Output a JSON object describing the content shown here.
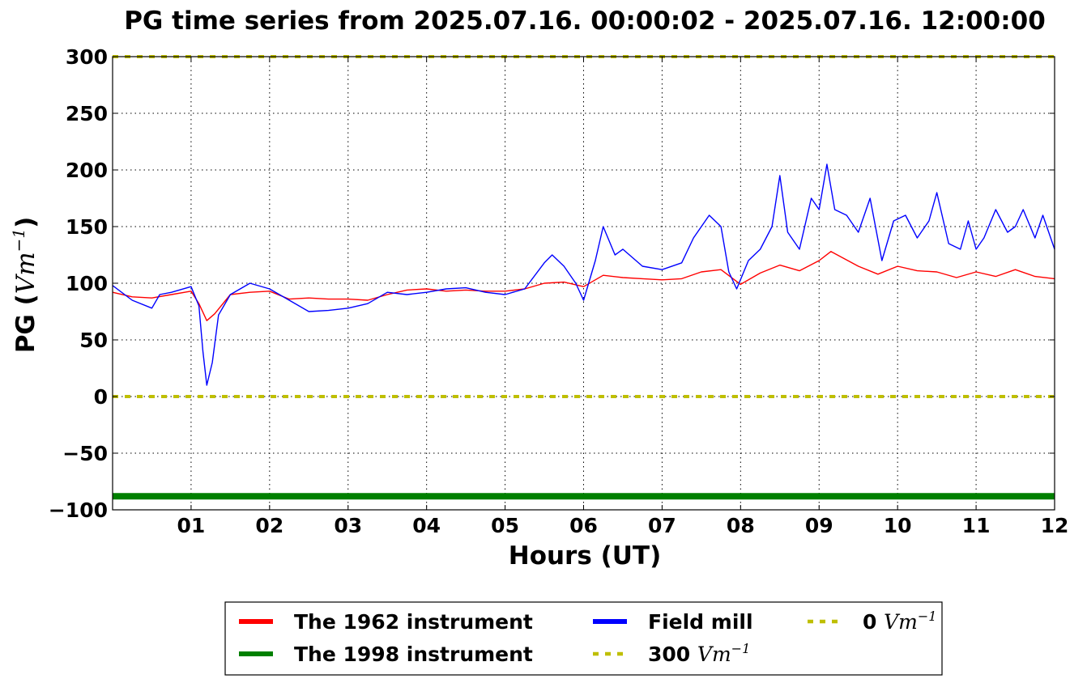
{
  "chart_data": {
    "type": "line",
    "title": "PG time series from 2025.07.16. 00:00:02 - 2025.07.16. 12:00:00",
    "xlabel": "Hours (UT)",
    "ylabel": "PG (",
    "ylabel_unit": "Vm",
    "ylabel_exp": "−1",
    "ylabel_close": ")",
    "xlim": [
      0,
      12
    ],
    "ylim": [
      -100,
      300
    ],
    "grid": true,
    "grid_style": "dotted",
    "legend_position": "bottom-center, below axes",
    "x_ticks": [
      {
        "value": 1,
        "label": "01"
      },
      {
        "value": 2,
        "label": "02"
      },
      {
        "value": 3,
        "label": "03"
      },
      {
        "value": 4,
        "label": "04"
      },
      {
        "value": 5,
        "label": "05"
      },
      {
        "value": 6,
        "label": "06"
      },
      {
        "value": 7,
        "label": "07"
      },
      {
        "value": 8,
        "label": "08"
      },
      {
        "value": 9,
        "label": "09"
      },
      {
        "value": 10,
        "label": "10"
      },
      {
        "value": 11,
        "label": "11"
      },
      {
        "value": 12,
        "label": "12"
      }
    ],
    "y_ticks": [
      {
        "value": 300,
        "label": "300"
      },
      {
        "value": 250,
        "label": "250"
      },
      {
        "value": 200,
        "label": "200"
      },
      {
        "value": 150,
        "label": "150"
      },
      {
        "value": 100,
        "label": "100"
      },
      {
        "value": 50,
        "label": "50"
      },
      {
        "value": 0,
        "label": "0"
      },
      {
        "value": -50,
        "label": "−50"
      },
      {
        "value": -100,
        "label": "−100"
      }
    ],
    "series": [
      {
        "name": "The 1962 instrument",
        "color": "#ff0000",
        "style": "solid",
        "x": [
          0,
          0.25,
          0.5,
          0.75,
          1.0,
          1.1,
          1.2,
          1.3,
          1.5,
          1.75,
          2.0,
          2.25,
          2.5,
          2.75,
          3.0,
          3.25,
          3.5,
          3.75,
          4.0,
          4.25,
          4.5,
          4.75,
          5.0,
          5.25,
          5.5,
          5.75,
          6.0,
          6.25,
          6.5,
          6.75,
          7.0,
          7.25,
          7.5,
          7.75,
          8.0,
          8.25,
          8.5,
          8.75,
          9.0,
          9.15,
          9.5,
          9.75,
          10.0,
          10.25,
          10.5,
          10.75,
          11.0,
          11.25,
          11.5,
          11.75,
          12.0
        ],
        "y": [
          92,
          88,
          87,
          90,
          93,
          82,
          67,
          73,
          90,
          92,
          93,
          86,
          87,
          86,
          86,
          85,
          90,
          94,
          95,
          93,
          94,
          93,
          93,
          95,
          100,
          101,
          97,
          107,
          105,
          104,
          103,
          104,
          110,
          112,
          99,
          109,
          116,
          111,
          120,
          128,
          115,
          108,
          115,
          111,
          110,
          105,
          110,
          106,
          112,
          106,
          104
        ]
      },
      {
        "name": "The 1998 instrument",
        "color": "#008000",
        "style": "solid-thick",
        "x": [
          0,
          12
        ],
        "y": [
          -88,
          -88
        ]
      },
      {
        "name": "Field mill",
        "color": "#0000ff",
        "style": "solid",
        "x": [
          0,
          0.25,
          0.5,
          0.6,
          0.75,
          1.0,
          1.1,
          1.15,
          1.2,
          1.27,
          1.35,
          1.5,
          1.75,
          2.0,
          2.25,
          2.5,
          2.75,
          3.0,
          3.25,
          3.5,
          3.75,
          4.0,
          4.25,
          4.5,
          4.75,
          5.0,
          5.25,
          5.5,
          5.6,
          5.75,
          5.9,
          6.0,
          6.15,
          6.25,
          6.4,
          6.5,
          6.75,
          7.0,
          7.25,
          7.4,
          7.6,
          7.75,
          7.85,
          7.95,
          8.1,
          8.25,
          8.4,
          8.5,
          8.6,
          8.75,
          8.9,
          9.0,
          9.1,
          9.2,
          9.35,
          9.5,
          9.65,
          9.8,
          9.95,
          10.1,
          10.25,
          10.4,
          10.5,
          10.65,
          10.8,
          10.9,
          11.0,
          11.1,
          11.25,
          11.4,
          11.5,
          11.6,
          11.75,
          11.85,
          12.0
        ],
        "y": [
          98,
          85,
          78,
          90,
          92,
          97,
          80,
          40,
          10,
          30,
          72,
          90,
          100,
          95,
          85,
          75,
          76,
          78,
          82,
          92,
          90,
          92,
          95,
          96,
          92,
          90,
          95,
          118,
          125,
          115,
          100,
          85,
          120,
          150,
          125,
          130,
          115,
          112,
          118,
          140,
          160,
          150,
          110,
          95,
          120,
          130,
          150,
          195,
          145,
          130,
          175,
          165,
          205,
          165,
          160,
          145,
          175,
          120,
          155,
          160,
          140,
          155,
          180,
          135,
          130,
          155,
          130,
          140,
          165,
          145,
          150,
          165,
          140,
          160,
          130
        ]
      },
      {
        "name": "300 Vm−1",
        "color": "#bfbf00",
        "style": "dotted",
        "x": [
          0,
          12
        ],
        "y": [
          300,
          300
        ]
      },
      {
        "name": "0 Vm−1",
        "color": "#bfbf00",
        "style": "dotted",
        "x": [
          0,
          12
        ],
        "y": [
          0,
          0
        ]
      }
    ],
    "legend": [
      {
        "series": 0,
        "label_bold": "The 1962 instrument",
        "label_math": "",
        "label_exp": ""
      },
      {
        "series": 1,
        "label_bold": "The 1998 instrument",
        "label_math": "",
        "label_exp": ""
      },
      {
        "series": 2,
        "label_bold": "Field mill",
        "label_math": "",
        "label_exp": ""
      },
      {
        "series": 3,
        "label_bold": "300 ",
        "label_math": "Vm",
        "label_exp": "−1"
      },
      {
        "series": 4,
        "label_bold": "0 ",
        "label_math": "Vm",
        "label_exp": "−1"
      }
    ]
  }
}
